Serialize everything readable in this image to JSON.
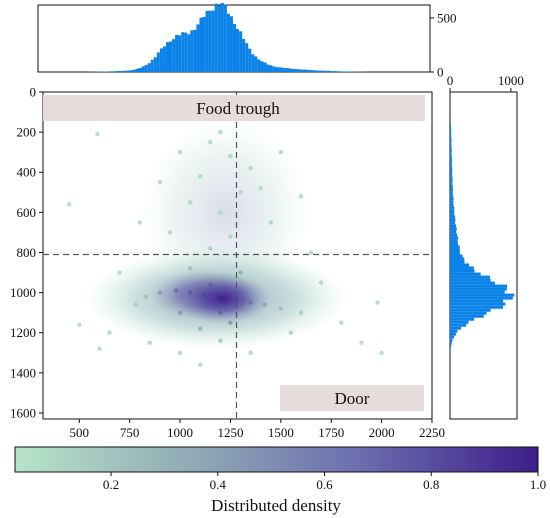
{
  "chart_data": [
    {
      "type": "scatter",
      "panel": "main",
      "description_of_marks": "density-colored scatter of positions",
      "xlim": [
        320,
        2250
      ],
      "ylim_inverted": [
        1630,
        0
      ],
      "x_ticks": [
        "500",
        "750",
        "1000",
        "1250",
        "1500",
        "1750",
        "2000",
        "2250"
      ],
      "y_ticks": [
        "0",
        "200",
        "400",
        "600",
        "800",
        "1000",
        "1200",
        "1400",
        "1600"
      ],
      "points": [
        [
          1200,
          1030,
          1.0
        ],
        [
          1120,
          1010,
          0.9
        ],
        [
          1050,
          1000,
          0.75
        ],
        [
          1280,
          1040,
          0.8
        ],
        [
          980,
          990,
          0.55
        ],
        [
          1350,
          1050,
          0.55
        ],
        [
          1200,
          1100,
          0.65
        ],
        [
          1150,
          960,
          0.7
        ],
        [
          900,
          1000,
          0.35
        ],
        [
          1420,
          1060,
          0.35
        ],
        [
          1250,
          1150,
          0.4
        ],
        [
          1000,
          1100,
          0.4
        ],
        [
          830,
          1020,
          0.2
        ],
        [
          1500,
          1080,
          0.2
        ],
        [
          1100,
          1180,
          0.25
        ],
        [
          1300,
          900,
          0.3
        ],
        [
          1050,
          880,
          0.2
        ],
        [
          780,
          1060,
          0.12
        ],
        [
          1600,
          1100,
          0.1
        ],
        [
          1200,
          1240,
          0.12
        ],
        [
          1150,
          780,
          0.1
        ],
        [
          1250,
          720,
          0.08
        ],
        [
          1200,
          600,
          0.06
        ],
        [
          1300,
          500,
          0.05
        ],
        [
          1100,
          420,
          0.05
        ],
        [
          1250,
          320,
          0.05
        ],
        [
          1150,
          250,
          0.04
        ],
        [
          1350,
          380,
          0.05
        ],
        [
          950,
          700,
          0.05
        ],
        [
          1450,
          650,
          0.05
        ],
        [
          1050,
          550,
          0.04
        ],
        [
          1400,
          480,
          0.04
        ],
        [
          1000,
          300,
          0.03
        ],
        [
          1500,
          300,
          0.03
        ],
        [
          1200,
          200,
          0.03
        ],
        [
          900,
          450,
          0.03
        ],
        [
          1600,
          520,
          0.03
        ],
        [
          700,
          900,
          0.04
        ],
        [
          1700,
          950,
          0.04
        ],
        [
          1800,
          1150,
          0.03
        ],
        [
          650,
          1200,
          0.03
        ],
        [
          1900,
          1250,
          0.02
        ],
        [
          600,
          1280,
          0.02
        ],
        [
          2000,
          1300,
          0.02
        ],
        [
          500,
          1160,
          0.02
        ],
        [
          450,
          560,
          0.02
        ],
        [
          590,
          210,
          0.02
        ],
        [
          1750,
          1480,
          0.02
        ],
        [
          1980,
          1050,
          0.02
        ],
        [
          850,
          1250,
          0.04
        ],
        [
          1550,
          1200,
          0.05
        ],
        [
          1350,
          1300,
          0.04
        ],
        [
          1000,
          1300,
          0.04
        ],
        [
          1650,
          800,
          0.03
        ],
        [
          800,
          650,
          0.03
        ],
        [
          1100,
          1360,
          0.03
        ]
      ],
      "crosshair": {
        "x": 1280,
        "y": 810
      },
      "annotations": [
        "Food trough",
        "Door"
      ]
    },
    {
      "type": "bar",
      "panel": "top-histogram",
      "y_ticks": [
        "0",
        "500"
      ],
      "ylim": [
        0,
        620
      ],
      "x_range": [
        320,
        2250
      ],
      "bin_width": 15,
      "profile": "bimodal, shoulder near 1000, peak about 600 near 1200"
    },
    {
      "type": "bar",
      "panel": "right-histogram",
      "orientation": "horizontal",
      "x_ticks": [
        "0",
        "1000"
      ],
      "xlim": [
        0,
        1100
      ],
      "y_range": [
        0,
        1630
      ],
      "bin_width": 15,
      "profile": "peak about 1000 near y=1020"
    }
  ],
  "colorbar": {
    "label": "Distributed density",
    "ticks": [
      "0.2",
      "0.4",
      "0.6",
      "0.8",
      "1.0"
    ],
    "tick_values": [
      0.2,
      0.4,
      0.6,
      0.8,
      1.0
    ],
    "range": [
      0.02,
      1.0
    ],
    "colors": [
      "#b6e4c8",
      "#8fa8b5",
      "#6d6fb0",
      "#3d1d8a"
    ]
  },
  "colors": {
    "histogram": "#0a82e8",
    "annotation_box": "#e6dcdb",
    "crosshair": "#555555"
  }
}
